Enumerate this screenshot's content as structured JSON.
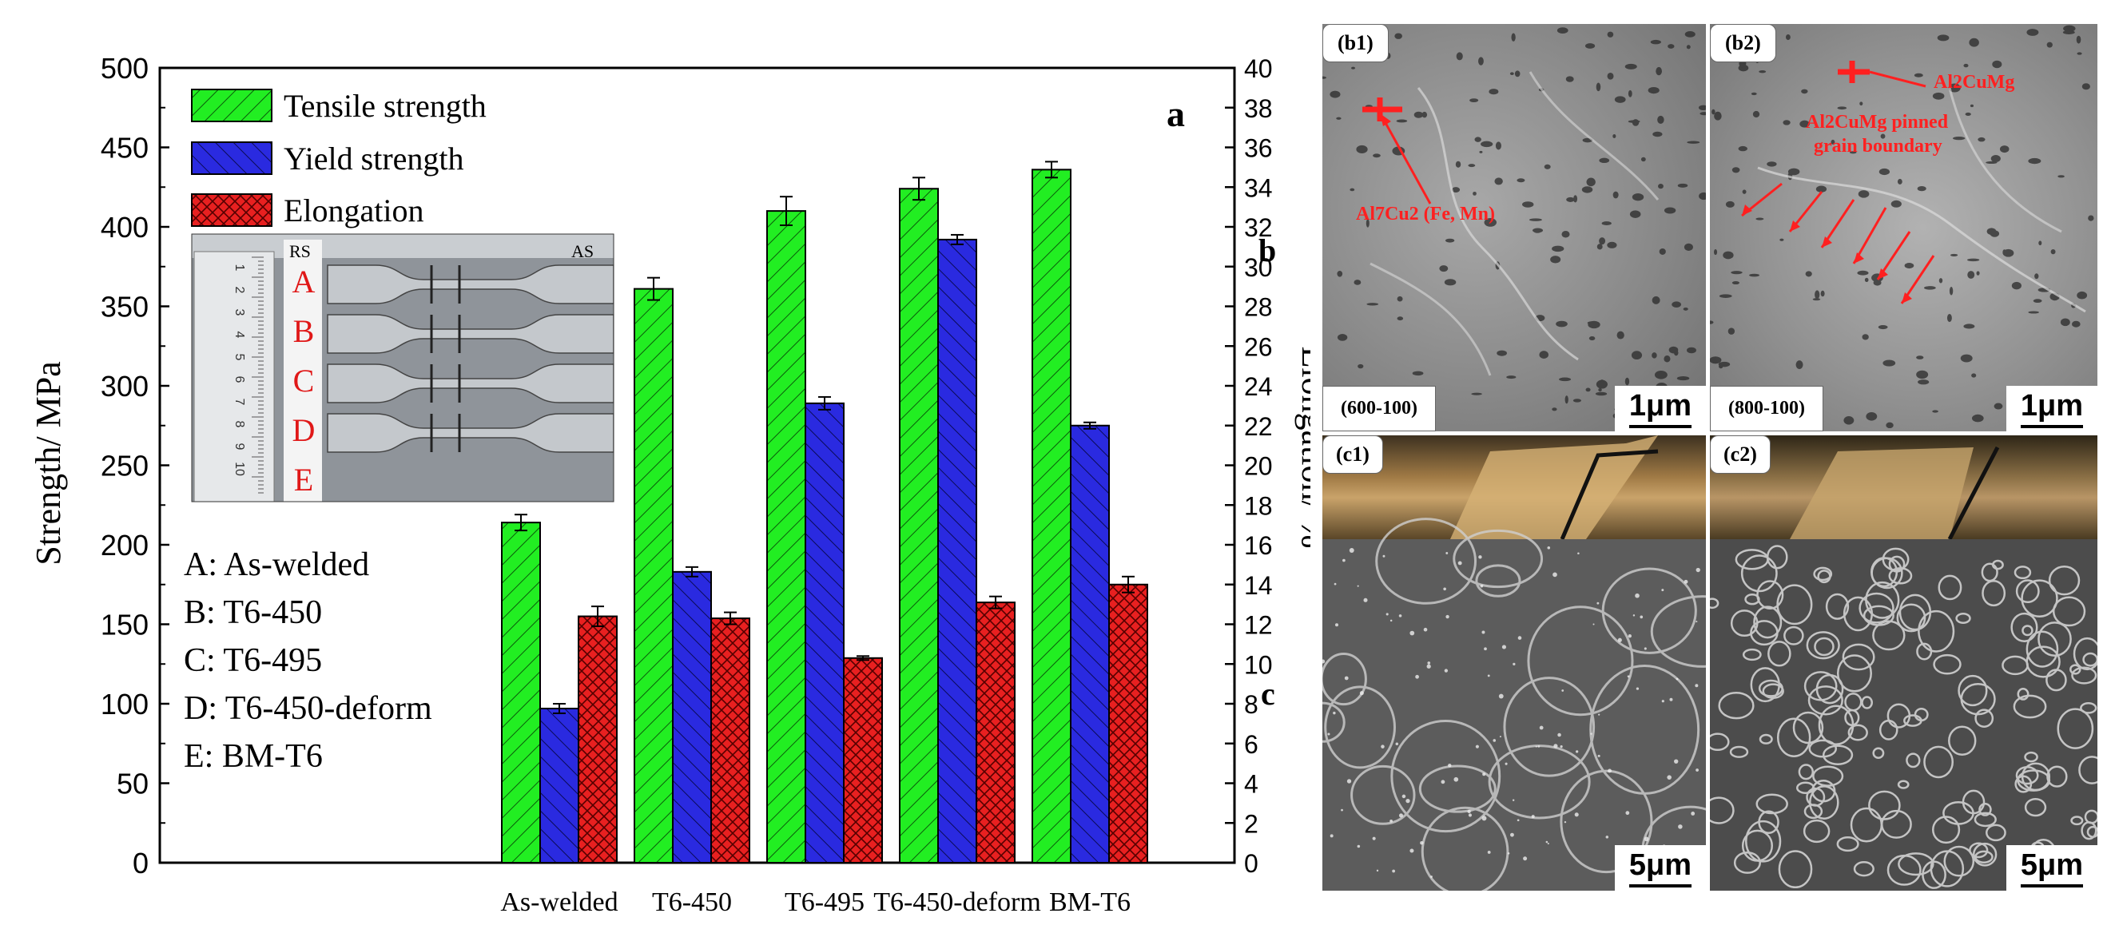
{
  "chart_data": {
    "type": "bar",
    "categories": [
      "As-welded",
      "T6-450",
      "T6-495",
      "T6-450-deform",
      "BM-T6"
    ],
    "series": [
      {
        "name": "Tensile strength",
        "axis": "left",
        "values": [
          214,
          361,
          410,
          424,
          436
        ],
        "errors": [
          5,
          7,
          9,
          7,
          5
        ],
        "color": "#22ee22"
      },
      {
        "name": "Yield strength",
        "axis": "left",
        "values": [
          97,
          183,
          289,
          392,
          275
        ],
        "errors": [
          3,
          3,
          4,
          3,
          2
        ],
        "color": "#2a2ae0"
      },
      {
        "name": "Elongation",
        "axis": "right",
        "values": [
          12.4,
          12.3,
          10.3,
          13.1,
          14.0
        ],
        "errors": [
          0.5,
          0.3,
          0.1,
          0.3,
          0.4
        ],
        "color": "#e82020"
      }
    ],
    "ylabel": "Strength/ MPa",
    "y2label": "Elongation/ %",
    "ylim": [
      0,
      500
    ],
    "y2lim": [
      0,
      40
    ],
    "yticks": [
      0,
      50,
      100,
      150,
      200,
      250,
      300,
      350,
      400,
      450,
      500
    ],
    "y2ticks": [
      0,
      2,
      4,
      6,
      8,
      10,
      12,
      14,
      16,
      18,
      20,
      22,
      24,
      26,
      28,
      30,
      32,
      34,
      36,
      38,
      40
    ],
    "panel_label": "a",
    "legend_position": "top-left",
    "sample_key": [
      "A: As-welded",
      "B: T6-450",
      "C: T6-495",
      "D: T6-450-deform",
      "E: BM-T6"
    ],
    "inset_photo": {
      "left_label": "RS",
      "right_label": "AS",
      "letters": [
        "A",
        "B",
        "C",
        "D",
        "E"
      ],
      "ruler_numbers": [
        "1",
        "2",
        "3",
        "4",
        "5",
        "6",
        "7",
        "8",
        "9",
        "10"
      ]
    }
  },
  "side_labels": {
    "b": "b",
    "c": "c"
  },
  "micrographs": {
    "b1": {
      "label": "(b1)",
      "condition": "(600-100)",
      "scale": "1μm",
      "annotation": "Al7Cu2 (Fe, Mn)"
    },
    "b2": {
      "label": "(b2)",
      "condition": "(800-100)",
      "scale": "1μm",
      "annotation_top": "Al2CuMg",
      "annotation_mid1": "Al2CuMg pinned",
      "annotation_mid2": "grain boundary"
    },
    "c1": {
      "label": "(c1)",
      "scale": "5μm"
    },
    "c2": {
      "label": "(c2)",
      "scale": "5μm"
    }
  }
}
